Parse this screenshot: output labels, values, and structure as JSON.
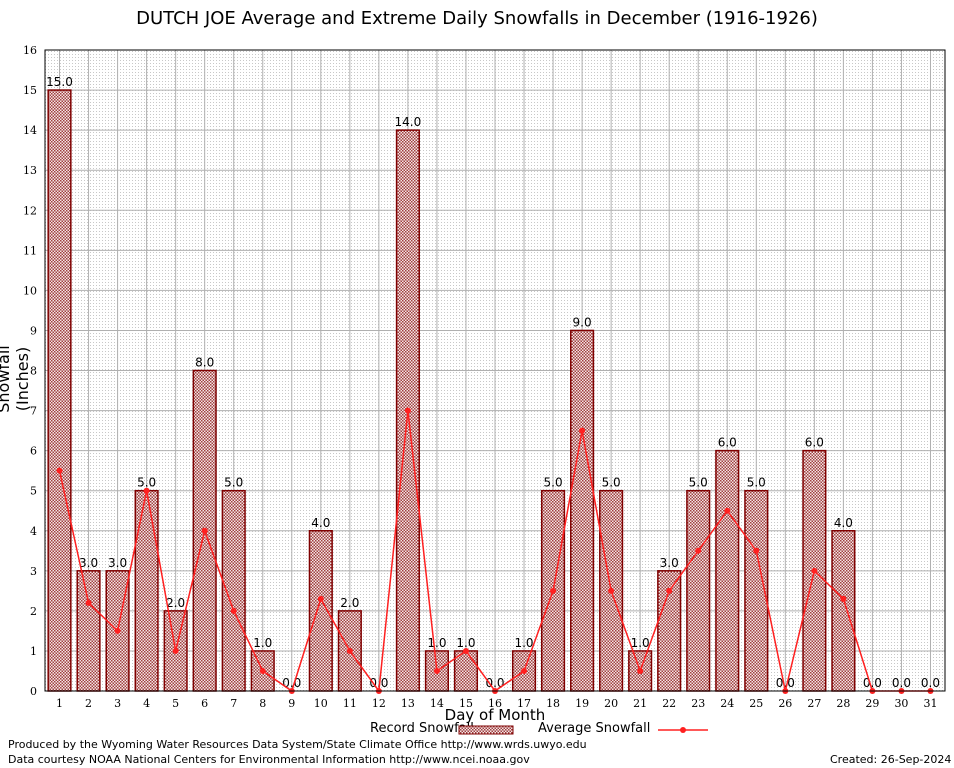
{
  "chart_data": {
    "type": "bar",
    "title": "DUTCH JOE Average and Extreme Daily Snowfalls in December (1916-1926)",
    "xlabel": "Day of Month",
    "ylabel": "Snowfall (Inches)",
    "ylim": [
      0,
      16
    ],
    "yticks": [
      0,
      1,
      2,
      3,
      4,
      5,
      6,
      7,
      8,
      9,
      10,
      11,
      12,
      13,
      14,
      15,
      16
    ],
    "categories": [
      1,
      2,
      3,
      4,
      5,
      6,
      7,
      8,
      9,
      10,
      11,
      12,
      13,
      14,
      15,
      16,
      17,
      18,
      19,
      20,
      21,
      22,
      23,
      24,
      25,
      26,
      27,
      28,
      29,
      30,
      31
    ],
    "series": [
      {
        "name": "Record Snowfall",
        "kind": "bar",
        "values": [
          15.0,
          3.0,
          3.0,
          5.0,
          2.0,
          8.0,
          5.0,
          1.0,
          0.0,
          4.0,
          2.0,
          0.0,
          14.0,
          1.0,
          1.0,
          0.0,
          1.0,
          5.0,
          9.0,
          5.0,
          1.0,
          3.0,
          5.0,
          6.0,
          5.0,
          0.0,
          6.0,
          4.0,
          0.0,
          0.0,
          0.0
        ]
      },
      {
        "name": "Average Snowfall",
        "kind": "line",
        "values": [
          5.5,
          2.2,
          1.5,
          5.0,
          1.0,
          4.0,
          2.0,
          0.5,
          0.0,
          2.3,
          1.0,
          0.0,
          7.0,
          0.5,
          1.0,
          0.0,
          0.5,
          2.5,
          6.5,
          2.5,
          0.5,
          2.5,
          3.5,
          4.5,
          3.5,
          0.0,
          3.0,
          2.3,
          0.0,
          0.0,
          0.0
        ]
      }
    ],
    "grid": true,
    "legend_position": "bottom"
  },
  "footer": {
    "produced_by": "Produced by the Wyoming Water Resources Data System/State Climate Office http://www.wrds.uwyo.edu",
    "data_courtesy": "Data courtesy NOAA National Centers for Environmental Information http://www.ncei.noaa.gov",
    "created": "Created: 26-Sep-2024"
  },
  "colors": {
    "bar_stroke": "#7f0000",
    "bar_fill": "#c08080",
    "line": "#ff2020",
    "grid": "#b0b0b0"
  }
}
